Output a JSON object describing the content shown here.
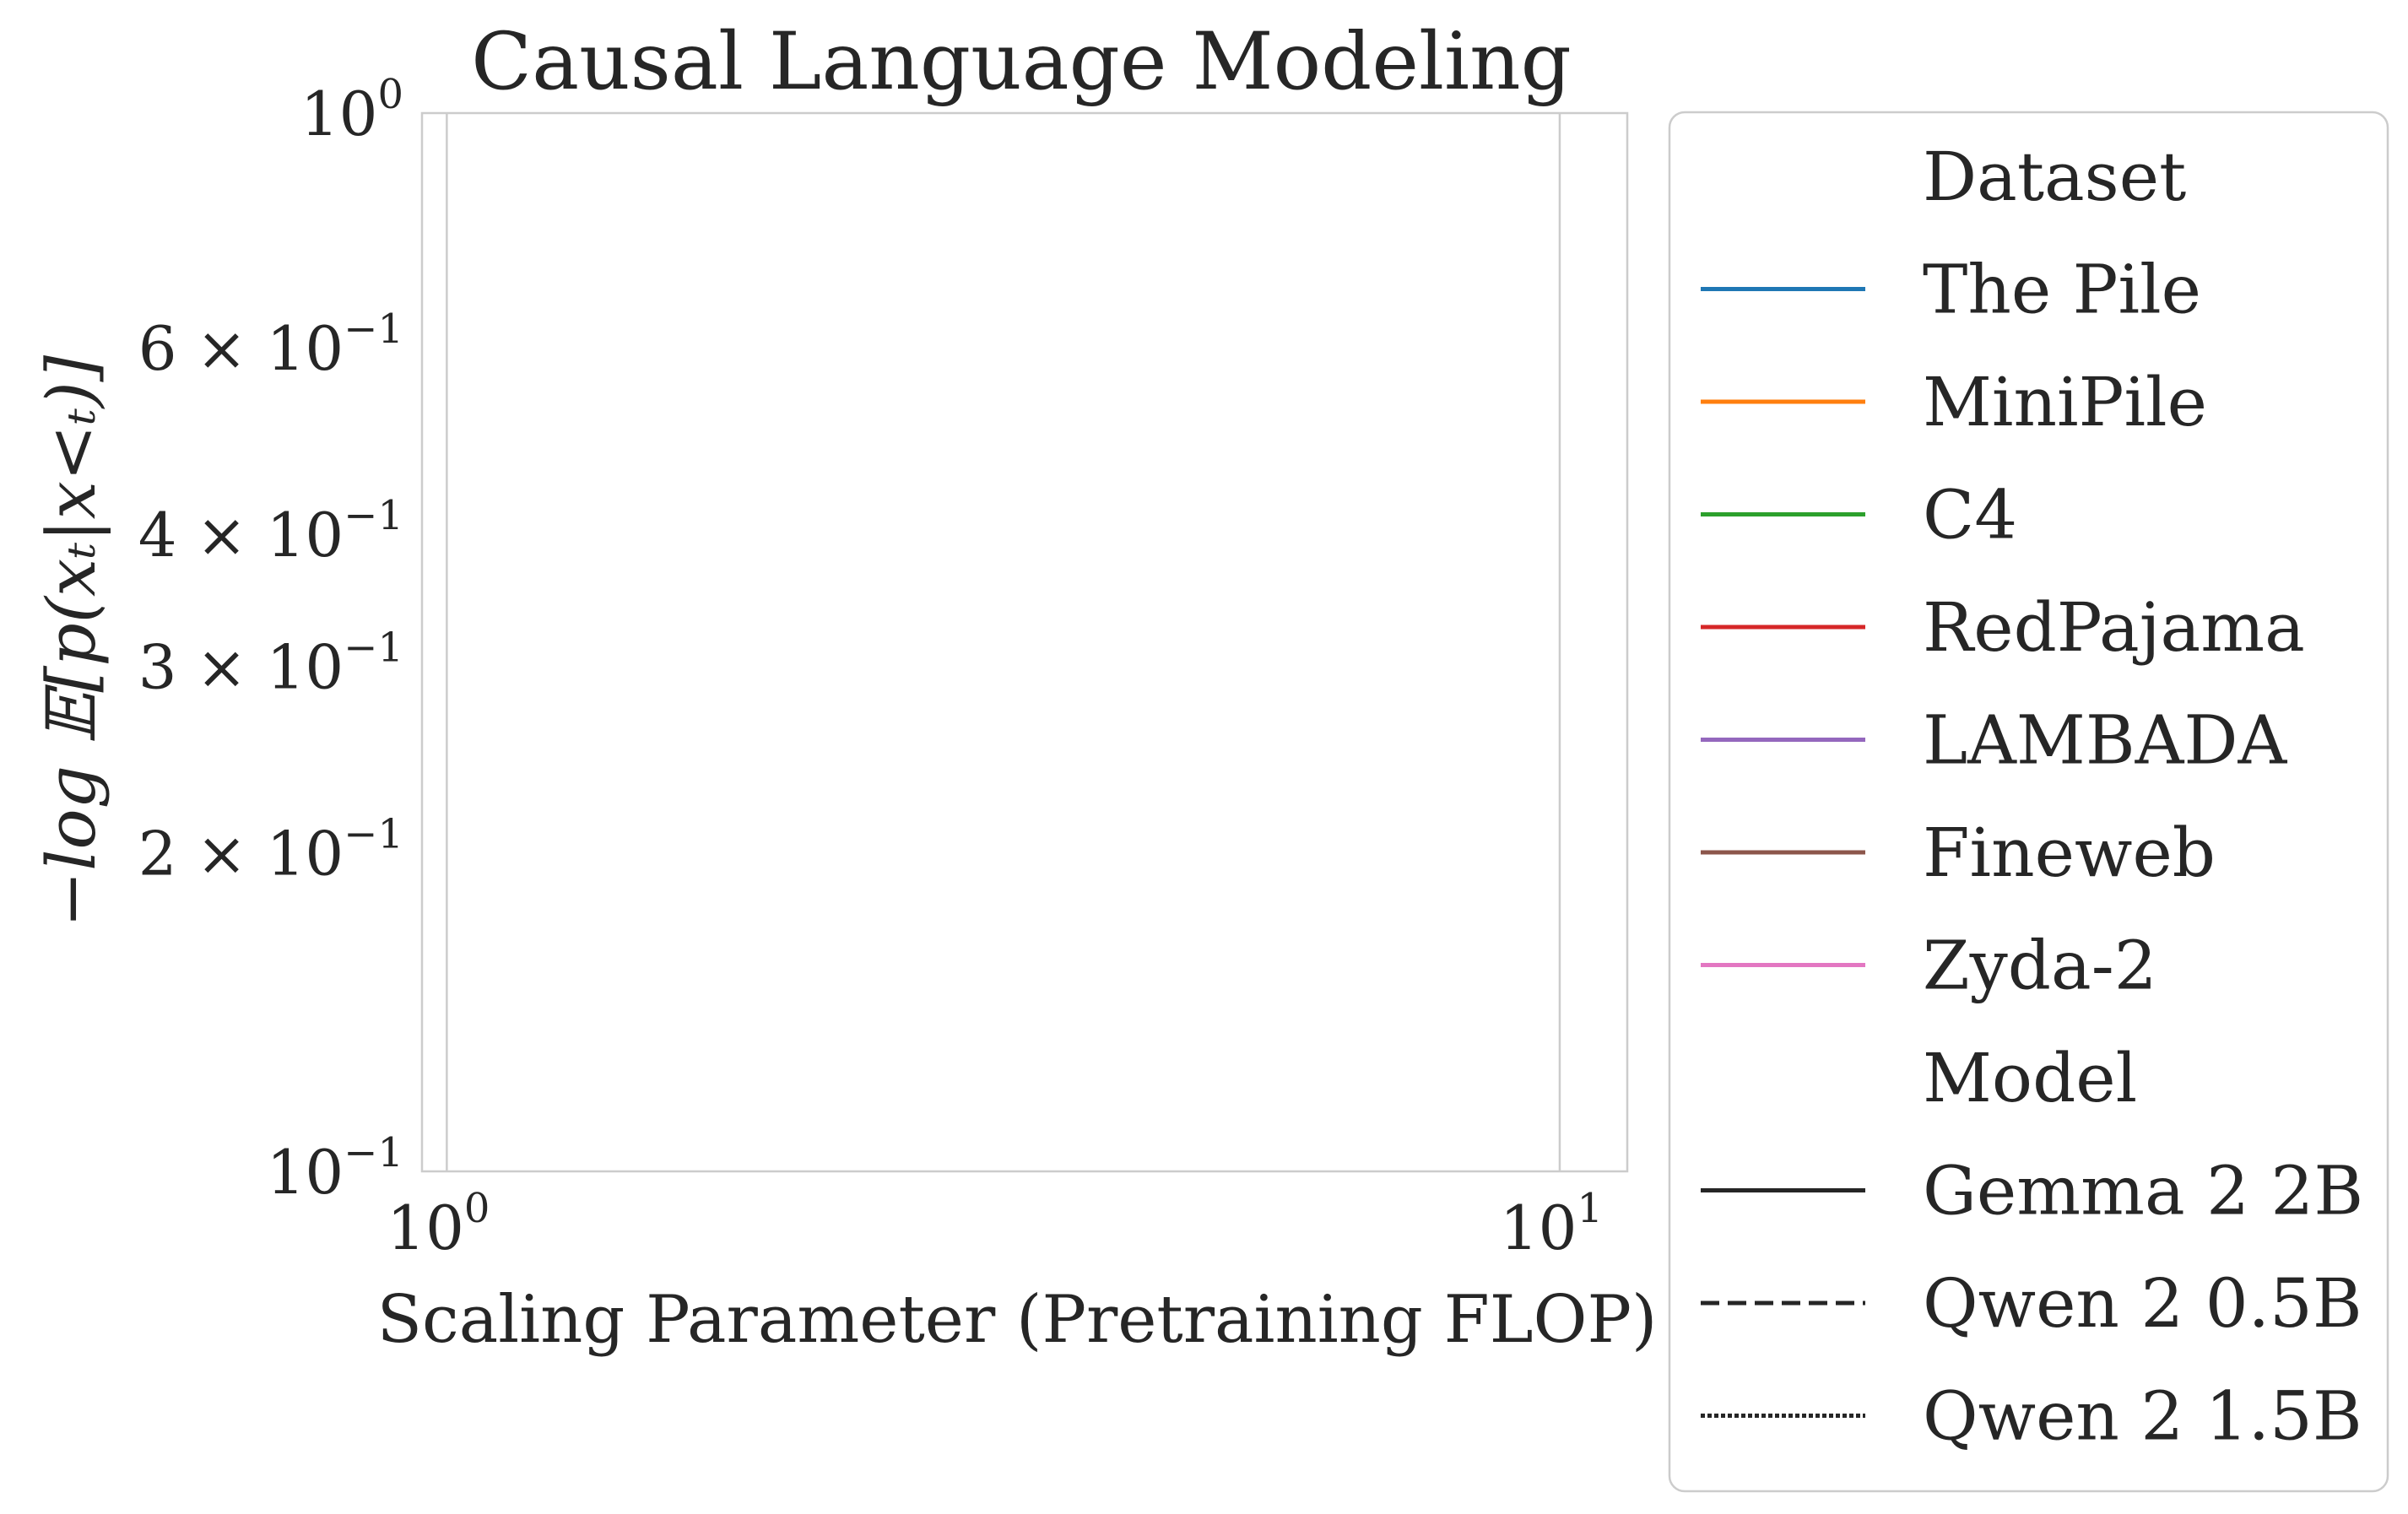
{
  "chart_data": {
    "type": "line",
    "title": "Causal Language Modeling",
    "xlabel": "Scaling Parameter (Pretraining FLOP)",
    "ylabel": "−log 𝔼[p(xₜ|x<ₜ)]",
    "xscale": "log",
    "yscale": "log",
    "xlim": [
      0.95,
      11.5
    ],
    "ylim": [
      0.1,
      1.0
    ],
    "grid": true,
    "x_major_ticks": [
      {
        "value": 1,
        "base": "10",
        "exp": "0"
      },
      {
        "value": 10,
        "base": "10",
        "exp": "1"
      }
    ],
    "y_ticks": [
      {
        "value": 1.0,
        "mant": "",
        "base": "10",
        "exp": "0"
      },
      {
        "value": 0.6,
        "mant": "6 × ",
        "base": "10",
        "exp": "−1"
      },
      {
        "value": 0.4,
        "mant": "4 × ",
        "base": "10",
        "exp": "−1"
      },
      {
        "value": 0.3,
        "mant": "3 × ",
        "base": "10",
        "exp": "−1"
      },
      {
        "value": 0.2,
        "mant": "2 × ",
        "base": "10",
        "exp": "−1"
      },
      {
        "value": 0.1,
        "mant": "",
        "base": "10",
        "exp": "−1"
      }
    ],
    "series": [],
    "legend": {
      "placement": "outside-right",
      "groups": [
        {
          "title": "Dataset",
          "entries": [
            {
              "label": "The Pile",
              "color": "#1f77b4",
              "dash": "solid"
            },
            {
              "label": "MiniPile",
              "color": "#ff7f0e",
              "dash": "solid"
            },
            {
              "label": "C4",
              "color": "#2ca02c",
              "dash": "solid"
            },
            {
              "label": "RedPajama",
              "color": "#d62728",
              "dash": "solid"
            },
            {
              "label": "LAMBADA",
              "color": "#9467bd",
              "dash": "solid"
            },
            {
              "label": "Fineweb",
              "color": "#8c564b",
              "dash": "solid"
            },
            {
              "label": "Zyda-2",
              "color": "#e377c2",
              "dash": "solid"
            }
          ]
        },
        {
          "title": "Model",
          "entries": [
            {
              "label": "Gemma 2 2B",
              "color": "#262626",
              "dash": "solid"
            },
            {
              "label": "Qwen 2 0.5B",
              "color": "#262626",
              "dash": "dashed"
            },
            {
              "label": "Qwen 2 1.5B",
              "color": "#262626",
              "dash": "dotted"
            }
          ]
        }
      ]
    }
  }
}
